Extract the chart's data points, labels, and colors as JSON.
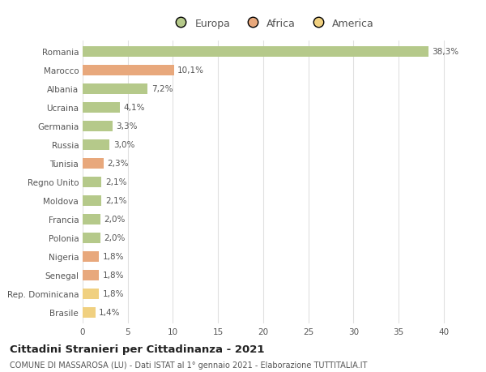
{
  "categories": [
    "Romania",
    "Marocco",
    "Albania",
    "Ucraina",
    "Germania",
    "Russia",
    "Tunisia",
    "Regno Unito",
    "Moldova",
    "Francia",
    "Polonia",
    "Nigeria",
    "Senegal",
    "Rep. Dominicana",
    "Brasile"
  ],
  "values": [
    38.3,
    10.1,
    7.2,
    4.1,
    3.3,
    3.0,
    2.3,
    2.1,
    2.1,
    2.0,
    2.0,
    1.8,
    1.8,
    1.8,
    1.4
  ],
  "labels": [
    "38,3%",
    "10,1%",
    "7,2%",
    "4,1%",
    "3,3%",
    "3,0%",
    "2,3%",
    "2,1%",
    "2,1%",
    "2,0%",
    "2,0%",
    "1,8%",
    "1,8%",
    "1,8%",
    "1,4%"
  ],
  "colors": [
    "#b5c98a",
    "#e8a87c",
    "#b5c98a",
    "#b5c98a",
    "#b5c98a",
    "#b5c98a",
    "#e8a87c",
    "#b5c98a",
    "#b5c98a",
    "#b5c98a",
    "#b5c98a",
    "#e8a87c",
    "#e8a87c",
    "#f0d080",
    "#f0d080"
  ],
  "legend_labels": [
    "Europa",
    "Africa",
    "America"
  ],
  "legend_colors": [
    "#b5c98a",
    "#e8a87c",
    "#f0d080"
  ],
  "title": "Cittadini Stranieri per Cittadinanza - 2021",
  "subtitle": "COMUNE DI MASSAROSA (LU) - Dati ISTAT al 1° gennaio 2021 - Elaborazione TUTTITALIA.IT",
  "xlim": [
    0,
    42
  ],
  "xticks": [
    0,
    5,
    10,
    15,
    20,
    25,
    30,
    35,
    40
  ],
  "background_color": "#ffffff",
  "grid_color": "#e0e0e0",
  "bar_height": 0.55,
  "label_fontsize": 7.5,
  "tick_fontsize": 7.5,
  "legend_fontsize": 9,
  "title_fontsize": 9.5,
  "subtitle_fontsize": 7
}
